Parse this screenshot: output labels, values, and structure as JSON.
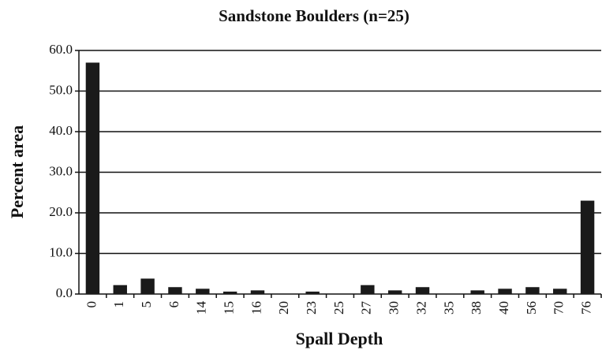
{
  "chart_data": {
    "type": "bar",
    "title": "Sandstone Boulders (n=25)",
    "x_label": "Spall Depth",
    "y_label": "Percent area",
    "categories": [
      "0",
      "1",
      "5",
      "6",
      "14",
      "15",
      "16",
      "20",
      "23",
      "25",
      "27",
      "30",
      "32",
      "35",
      "38",
      "40",
      "56",
      "70",
      "76"
    ],
    "values": [
      57,
      2.2,
      3.8,
      1.7,
      1.3,
      0.6,
      0.9,
      0,
      0.6,
      0,
      2.2,
      0.9,
      1.7,
      0,
      0.9,
      1.3,
      1.7,
      1.3,
      23
    ],
    "color": "#1a1a1a",
    "ylim": [
      0,
      60
    ],
    "yticks": [
      {
        "value": 0,
        "label": "0.0"
      },
      {
        "value": 10,
        "label": "10.0"
      },
      {
        "value": 20,
        "label": "20.0"
      },
      {
        "value": 30,
        "label": "30.0"
      },
      {
        "value": 40,
        "label": "40.0"
      },
      {
        "value": 50,
        "label": "50.0"
      },
      {
        "value": 60,
        "label": "60.0"
      }
    ],
    "grid": true
  }
}
